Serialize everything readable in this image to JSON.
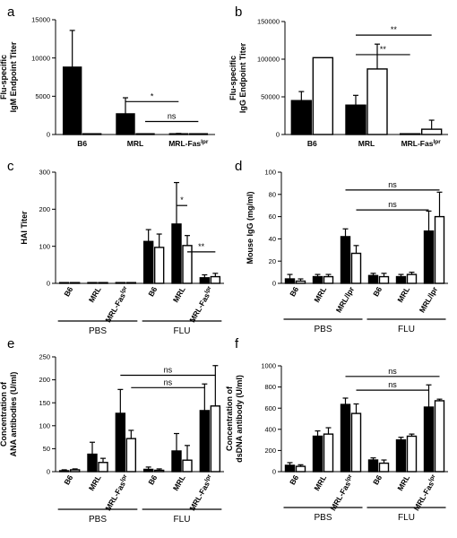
{
  "chart_data": [
    {
      "id": "a",
      "type": "bar",
      "panel_label": "a",
      "ylabel": [
        "Flu-specific",
        "IgM Endpoint Titer"
      ],
      "categories": [
        {
          "label": "B6"
        },
        {
          "label": "MRL"
        },
        {
          "label": "MRL-Fas",
          "sup": "lpr"
        }
      ],
      "series": [
        {
          "fill": "#000000",
          "values": [
            8800,
            2700,
            80
          ],
          "errors": [
            4800,
            2100,
            60
          ]
        },
        {
          "fill": "#ffffff",
          "values": [
            60,
            60,
            60
          ],
          "errors": [
            30,
            30,
            30
          ]
        }
      ],
      "ylim": [
        0,
        15000
      ],
      "yticks": [
        0,
        5000,
        10000,
        15000
      ],
      "significance": [
        {
          "label": "*",
          "from": [
            1,
            0
          ],
          "to": [
            2,
            0
          ],
          "y": 4300
        },
        {
          "label": "ns",
          "from": [
            1,
            1
          ],
          "to": [
            2,
            1
          ],
          "y": 1700
        }
      ]
    },
    {
      "id": "b",
      "type": "bar",
      "panel_label": "b",
      "ylabel": [
        "Flu-specific",
        "IgG Endpoint Titer"
      ],
      "categories": [
        {
          "label": "B6"
        },
        {
          "label": "MRL"
        },
        {
          "label": "MRL-Fas",
          "sup": "lpr"
        }
      ],
      "series": [
        {
          "fill": "#000000",
          "values": [
            45000,
            39000,
            500
          ],
          "errors": [
            12000,
            13000,
            0
          ]
        },
        {
          "fill": "#ffffff",
          "values": [
            102000,
            87000,
            7000
          ],
          "errors": [
            0,
            33000,
            12000
          ]
        }
      ],
      "ylim": [
        0,
        150000
      ],
      "yticks": [
        0,
        50000,
        100000,
        150000
      ],
      "significance": [
        {
          "label": "**",
          "from": [
            1,
            0
          ],
          "to": [
            2,
            1
          ],
          "y": 132000
        },
        {
          "label": "**",
          "from": [
            1,
            0
          ],
          "to": [
            2,
            0
          ],
          "y": 106000
        }
      ]
    },
    {
      "id": "c",
      "type": "bar",
      "panel_label": "c",
      "ylabel": [
        "HAI Titer"
      ],
      "categories": [
        {
          "label": "B6"
        },
        {
          "label": "MRL"
        },
        {
          "label": "MRL-Fas",
          "sup": "lpr"
        },
        {
          "label": "B6"
        },
        {
          "label": "MRL"
        },
        {
          "label": "MRL-Fas",
          "sup": "lpr"
        }
      ],
      "series": [
        {
          "fill": "#000000",
          "values": [
            2,
            2,
            2,
            113,
            160,
            15
          ],
          "errors": [
            0,
            0,
            0,
            32,
            112,
            8
          ]
        },
        {
          "fill": "#ffffff",
          "values": [
            2,
            2,
            2,
            97,
            102,
            18
          ],
          "errors": [
            0,
            0,
            0,
            36,
            27,
            9
          ]
        }
      ],
      "ylim": [
        0,
        300
      ],
      "yticks": [
        0,
        100,
        200,
        300
      ],
      "groups": [
        {
          "label": "PBS",
          "from": 0,
          "to": 2
        },
        {
          "label": "FLU",
          "from": 3,
          "to": 5
        }
      ],
      "significance": [
        {
          "label": "*",
          "from": [
            4,
            0
          ],
          "to": [
            4,
            1
          ],
          "y": 210
        },
        {
          "label": "**",
          "from": [
            4,
            1
          ],
          "to": [
            5,
            1
          ],
          "y": 85
        }
      ]
    },
    {
      "id": "d",
      "type": "bar",
      "panel_label": "d",
      "ylabel": [
        "Mouse IgG (mg/ml)"
      ],
      "categories": [
        {
          "label": "B6"
        },
        {
          "label": "MRL"
        },
        {
          "label": "MRL/lpr"
        },
        {
          "label": "B6"
        },
        {
          "label": "MRL"
        },
        {
          "label": "MRL/lpr"
        }
      ],
      "series": [
        {
          "fill": "#000000",
          "values": [
            4,
            6,
            42,
            7,
            6,
            47
          ],
          "errors": [
            4,
            2,
            7,
            2,
            2,
            18
          ]
        },
        {
          "fill": "#ffffff",
          "values": [
            2,
            6,
            27,
            6,
            8,
            60
          ],
          "errors": [
            2,
            2,
            7,
            3,
            2,
            22
          ]
        }
      ],
      "ylim": [
        0,
        100
      ],
      "yticks": [
        0,
        20,
        40,
        60,
        80,
        100
      ],
      "groups": [
        {
          "label": "PBS",
          "from": 0,
          "to": 2
        },
        {
          "label": "FLU",
          "from": 3,
          "to": 5
        }
      ],
      "significance": [
        {
          "label": "ns",
          "from": [
            2,
            0
          ],
          "to": [
            5,
            1
          ],
          "y": 84
        },
        {
          "label": "ns",
          "from": [
            2,
            1
          ],
          "to": [
            5,
            0
          ],
          "y": 66
        }
      ]
    },
    {
      "id": "e",
      "type": "bar",
      "panel_label": "e",
      "ylabel": [
        "Concentration of",
        "ANA antibodies (U/ml)"
      ],
      "categories": [
        {
          "label": "B6"
        },
        {
          "label": "MRL"
        },
        {
          "label": "MRL-Fas",
          "sup": "lpr"
        },
        {
          "label": "B6"
        },
        {
          "label": "MRL"
        },
        {
          "label": "MRL-Fas",
          "sup": "lpr"
        }
      ],
      "series": [
        {
          "fill": "#000000",
          "values": [
            2,
            38,
            127,
            5,
            45,
            133
          ],
          "errors": [
            2,
            26,
            52,
            5,
            38,
            58
          ]
        },
        {
          "fill": "#ffffff",
          "values": [
            4,
            20,
            72,
            3,
            25,
            143
          ],
          "errors": [
            2,
            9,
            18,
            3,
            32,
            88
          ]
        }
      ],
      "ylim": [
        0,
        250
      ],
      "yticks": [
        0,
        50,
        100,
        150,
        200,
        250
      ],
      "groups": [
        {
          "label": "PBS",
          "from": 0,
          "to": 2
        },
        {
          "label": "FLU",
          "from": 3,
          "to": 5
        }
      ],
      "significance": [
        {
          "label": "ns",
          "from": [
            2,
            0
          ],
          "to": [
            5,
            1
          ],
          "y": 210
        },
        {
          "label": "ns",
          "from": [
            2,
            1
          ],
          "to": [
            5,
            0
          ],
          "y": 183
        }
      ]
    },
    {
      "id": "f",
      "type": "bar",
      "panel_label": "f",
      "ylabel": [
        "Concentration of",
        "dsDNA antibody (U/ml)"
      ],
      "categories": [
        {
          "label": "B6"
        },
        {
          "label": "MRL"
        },
        {
          "label": "MRL-Fas",
          "sup": "lpr"
        },
        {
          "label": "B6"
        },
        {
          "label": "MRL"
        },
        {
          "label": "MRL-Fas",
          "sup": "lpr"
        }
      ],
      "series": [
        {
          "fill": "#000000",
          "values": [
            60,
            335,
            635,
            110,
            300,
            610
          ],
          "errors": [
            25,
            50,
            60,
            20,
            25,
            210
          ]
        },
        {
          "fill": "#ffffff",
          "values": [
            50,
            355,
            550,
            80,
            335,
            670
          ],
          "errors": [
            15,
            60,
            90,
            30,
            20,
            15
          ]
        }
      ],
      "ylim": [
        0,
        1000
      ],
      "yticks": [
        0,
        200,
        400,
        600,
        800,
        1000
      ],
      "groups": [
        {
          "label": "PBS",
          "from": 0,
          "to": 2
        },
        {
          "label": "FLU",
          "from": 3,
          "to": 5
        }
      ],
      "significance": [
        {
          "label": "ns",
          "from": [
            2,
            0
          ],
          "to": [
            5,
            1
          ],
          "y": 900
        },
        {
          "label": "ns",
          "from": [
            2,
            1
          ],
          "to": [
            5,
            0
          ],
          "y": 770
        }
      ]
    }
  ]
}
